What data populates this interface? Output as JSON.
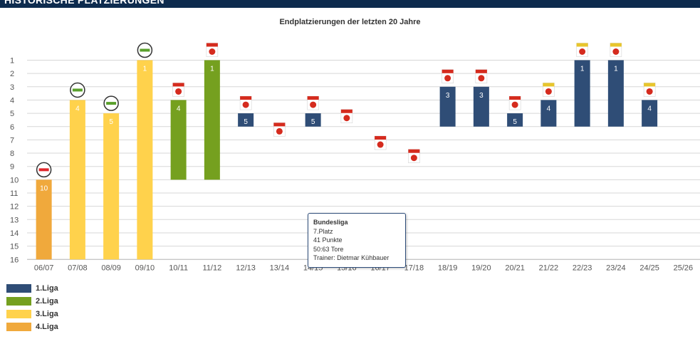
{
  "header": {
    "title": "HISTORISCHE PLATZIERUNGEN"
  },
  "colors": {
    "liga1": "#2f4d76",
    "liga1_light": "#4a6891",
    "liga2": "#75a01f",
    "liga3": "#ffd24c",
    "liga4": "#f0a93c",
    "grid": "#d7d7d7"
  },
  "chart_data": {
    "type": "bar",
    "title": "Endplatzierungen der letzten 20 Jahre",
    "xlabel": "",
    "ylabel": "",
    "ylim": [
      1,
      16
    ],
    "y_axis": "reversed",
    "yticks": [
      "1",
      "2",
      "3",
      "4",
      "5",
      "6",
      "7",
      "8",
      "9",
      "10",
      "11",
      "12",
      "13",
      "14",
      "15",
      "16"
    ],
    "categories": [
      "06/07",
      "07/08",
      "08/09",
      "09/10",
      "10/11",
      "11/12",
      "12/13",
      "13/14",
      "14/15",
      "15/16",
      "16/17",
      "17/18",
      "18/19",
      "19/20",
      "20/21",
      "21/22",
      "22/23",
      "23/24",
      "24/25",
      "25/26"
    ],
    "values": [
      10,
      4,
      5,
      1,
      4,
      1,
      5,
      7,
      5,
      6,
      8,
      9,
      3,
      3,
      5,
      4,
      1,
      1,
      4,
      null
    ],
    "liga": [
      4,
      3,
      3,
      3,
      2,
      2,
      1,
      1,
      1,
      1,
      1,
      1,
      1,
      1,
      1,
      1,
      1,
      1,
      1,
      null
    ],
    "legend": [
      {
        "label": "1.Liga",
        "color_key": "liga1"
      },
      {
        "label": "2.Liga",
        "color_key": "liga2"
      },
      {
        "label": "3.Liga",
        "color_key": "liga3"
      },
      {
        "label": "4.Liga",
        "color_key": "liga4"
      }
    ],
    "grid": true,
    "legend_position": "bottom-left"
  },
  "tooltip": {
    "title": "Bundesliga",
    "platz": "7.Platz",
    "punkte": "41 Punkte",
    "tore": "50:63 Tore",
    "trainer": "Trainer: Dietmar Kühbauer"
  }
}
